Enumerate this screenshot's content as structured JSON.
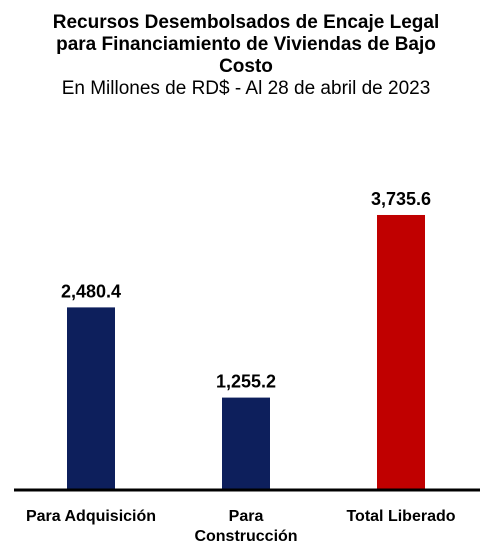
{
  "chart_data": {
    "type": "bar",
    "title": "Recursos Desembolsados de Encaje Legal para Financiamiento de Viviendas de Bajo Costo",
    "subtitle": "En Millones de RD$ - Al 28 de abril de 2023",
    "categories": [
      "Para Adquisición",
      "Para Construcción",
      "Total Liberado"
    ],
    "category_lines": [
      [
        "Para Adquisición"
      ],
      [
        "Para",
        "Construcción"
      ],
      [
        "Total Liberado"
      ]
    ],
    "values": [
      2480.4,
      1255.2,
      3735.6
    ],
    "value_labels": [
      "2,480.4",
      "1,255.2",
      "3,735.6"
    ],
    "colors": [
      "#0d1f5c",
      "#0d1f5c",
      "#c00000"
    ],
    "ylim": [
      0,
      4000
    ],
    "xlabel": "",
    "ylabel": "",
    "grid": false,
    "legend": "none"
  }
}
